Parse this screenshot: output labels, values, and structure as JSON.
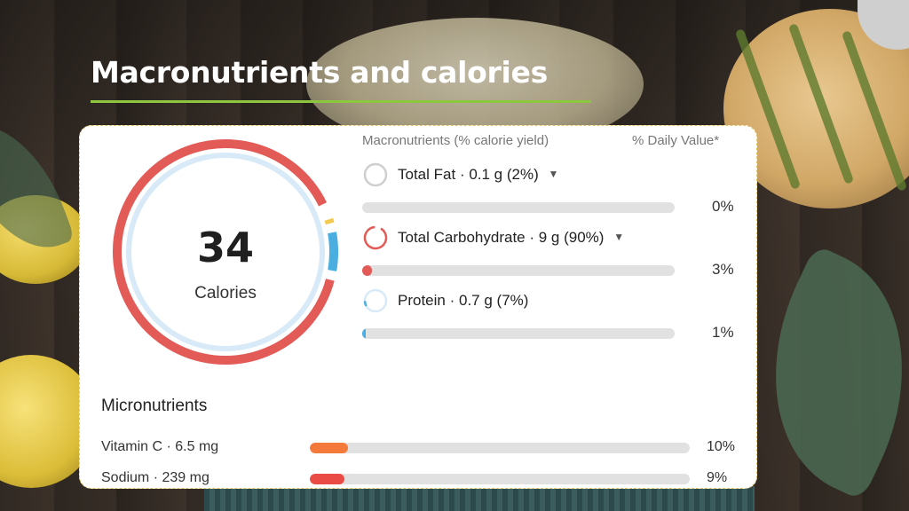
{
  "title": "Macronutrients and calories",
  "colors": {
    "fat": "#bdbdbd",
    "carb": "#e35b57",
    "protein": "#4aaee0",
    "ring_inner": "#d8e9f8",
    "ring_yellow": "#f2c94c",
    "vitc": "#f47a3c",
    "sodium": "#ea4c45",
    "accent_rule": "#8dc63f"
  },
  "calories": {
    "value": "34",
    "label": "Calories"
  },
  "macros": {
    "header_left": "Macronutrients (% calorie yield)",
    "header_right": "% Daily Value*",
    "items": [
      {
        "name": "Total Fat",
        "amount": "· 0.1 g (2%)",
        "has_caret": true,
        "dv": "0%",
        "dv_fraction": 0.0,
        "yield_fraction": 0.02,
        "icon": "fat-ring-icon"
      },
      {
        "name": "Total Carbohydrate",
        "amount": "· 9 g (90%)",
        "has_caret": true,
        "dv": "3%",
        "dv_fraction": 0.03,
        "yield_fraction": 0.9,
        "icon": "carbohydrate-ring-icon"
      },
      {
        "name": "Protein",
        "amount": "· 0.7 g (7%)",
        "has_caret": false,
        "dv": "1%",
        "dv_fraction": 0.01,
        "yield_fraction": 0.07,
        "icon": "protein-ring-icon"
      }
    ]
  },
  "micros": {
    "header": "Micronutrients",
    "items": [
      {
        "name": "Vitamin C · 6.5 mg",
        "dv": "10%",
        "dv_fraction": 0.1
      },
      {
        "name": "Sodium · 239 mg",
        "dv": "9%",
        "dv_fraction": 0.09
      }
    ]
  }
}
